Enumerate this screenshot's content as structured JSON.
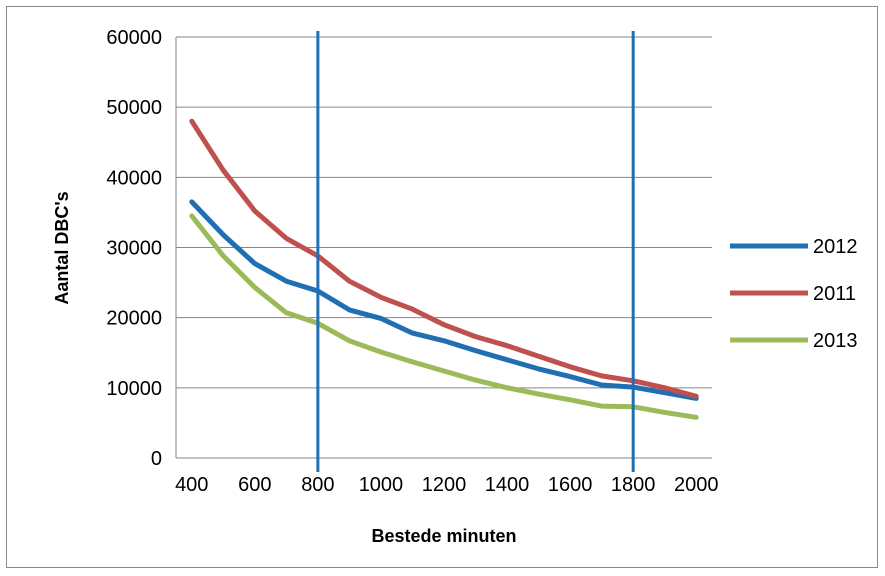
{
  "chart_data": {
    "type": "line",
    "title": "",
    "xlabel": "Bestede minuten",
    "ylabel": "Aantal DBC's",
    "xlim": [
      350,
      2050
    ],
    "ylim": [
      0,
      60000
    ],
    "x_ticks": [
      "400",
      "600",
      "800",
      "1000",
      "1200",
      "1400",
      "1600",
      "1800",
      "2000"
    ],
    "y_ticks": [
      "0",
      "10000",
      "20000",
      "30000",
      "40000",
      "50000",
      "60000"
    ],
    "grid": "horizontal",
    "legend_position": "right",
    "vertical_markers": [
      800,
      1800
    ],
    "marker_color": "#1f6fb2",
    "x": [
      400,
      500,
      600,
      700,
      800,
      900,
      1000,
      1100,
      1200,
      1300,
      1400,
      1500,
      1600,
      1700,
      1800,
      1900,
      2000
    ],
    "series": [
      {
        "name": "2012",
        "color": "#1f6fb2",
        "values": [
          36500,
          31800,
          27700,
          25200,
          23800,
          21100,
          19900,
          17800,
          16700,
          15300,
          14000,
          12700,
          11600,
          10400,
          10100,
          9300,
          8500
        ]
      },
      {
        "name": "2011",
        "color": "#c0504d",
        "values": [
          48000,
          41000,
          35200,
          31300,
          28800,
          25200,
          22900,
          21200,
          19000,
          17300,
          16000,
          14500,
          13000,
          11700,
          11000,
          10000,
          8800
        ]
      },
      {
        "name": "2013",
        "color": "#9bbb59",
        "values": [
          34500,
          28800,
          24300,
          20700,
          19200,
          16700,
          15100,
          13700,
          12400,
          11100,
          10000,
          9100,
          8300,
          7400,
          7300,
          6500,
          5800
        ]
      }
    ]
  }
}
